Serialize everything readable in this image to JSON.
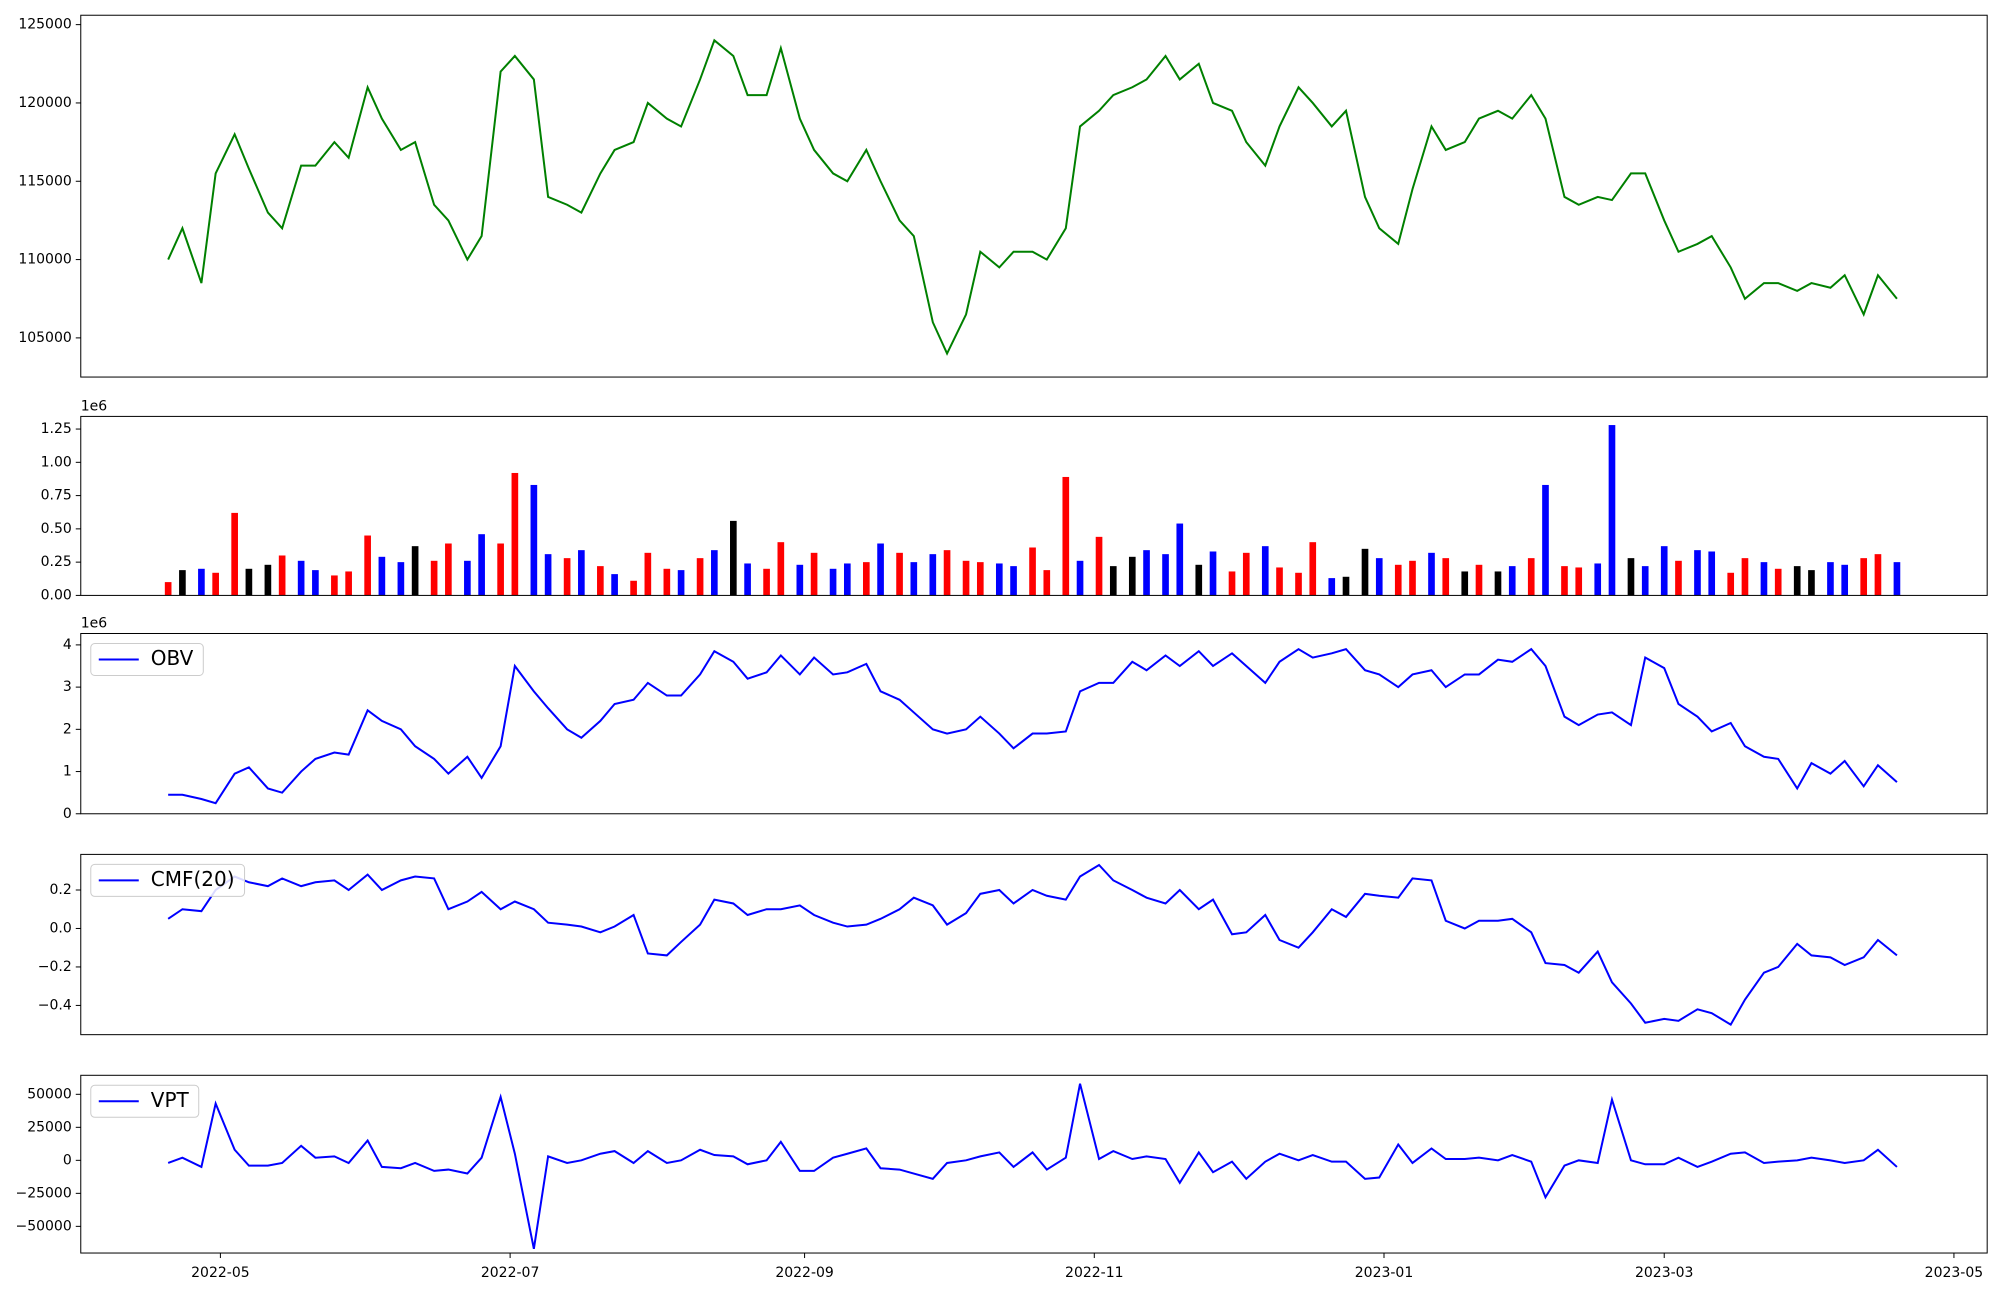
{
  "chart_data": [
    {
      "type": "line",
      "x": [
        19102,
        19105,
        19109,
        19112,
        19116,
        19119,
        19123,
        19126,
        19130,
        19133,
        19137,
        19140,
        19144,
        19147,
        19151,
        19154,
        19158,
        19161,
        19165,
        19168,
        19172,
        19175,
        19179,
        19182,
        19186,
        19189,
        19193,
        19196,
        19200,
        19203,
        19207,
        19210,
        19214,
        19217,
        19221,
        19224,
        19228,
        19231,
        19235,
        19238,
        19242,
        19245,
        19249,
        19252,
        19256,
        19259,
        19263,
        19266,
        19270,
        19273,
        19277,
        19280,
        19284,
        19287,
        19291,
        19294,
        19298,
        19301,
        19305,
        19308,
        19312,
        19315,
        19319,
        19322,
        19326,
        19329,
        19333,
        19336,
        19340,
        19343,
        19347,
        19350,
        19354,
        19357,
        19361,
        19364,
        19368,
        19371,
        19375,
        19378,
        19382,
        19385,
        19389,
        19392,
        19396,
        19399,
        19403,
        19406,
        19410,
        19413,
        19417,
        19420,
        19424,
        19427,
        19431,
        19434,
        19438,
        19441,
        19445,
        19448,
        19452,
        19455,
        19459,
        19462,
        19466
      ],
      "xlim": [
        19083.6,
        19485
      ],
      "values": [
        110000,
        112000,
        108500,
        115500,
        118000,
        115800,
        113000,
        112000,
        116000,
        116000,
        117500,
        116500,
        121000,
        119000,
        117000,
        117500,
        113500,
        112500,
        110000,
        111500,
        122000,
        123000,
        121500,
        114000,
        113500,
        113000,
        115500,
        117000,
        117500,
        120000,
        119000,
        118500,
        121500,
        124000,
        123000,
        120500,
        120500,
        123500,
        119000,
        117000,
        115500,
        115000,
        117000,
        115000,
        112500,
        111500,
        106000,
        104000,
        106500,
        110500,
        109500,
        110500,
        110500,
        110000,
        112000,
        118500,
        119500,
        120500,
        121000,
        121500,
        123000,
        121500,
        122500,
        120000,
        119500,
        117500,
        116000,
        118500,
        121000,
        120000,
        118500,
        119500,
        114000,
        112000,
        111000,
        114500,
        118500,
        117000,
        117500,
        119000,
        119500,
        119000,
        120500,
        119000,
        114000,
        113500,
        114000,
        113800,
        115500,
        115500,
        112500,
        110500,
        111000,
        111500,
        109500,
        107500,
        108500,
        108500,
        108000,
        108500,
        108200,
        109000,
        106500,
        109000,
        107500
      ],
      "color": "#008000",
      "ylim": [
        102500,
        125600
      ],
      "yticks": [
        105000,
        110000,
        115000,
        120000,
        125000
      ]
    },
    {
      "type": "bar",
      "values": [
        100000,
        190000,
        200000,
        170000,
        620000,
        200000,
        230000,
        300000,
        260000,
        190000,
        150000,
        180000,
        450000,
        290000,
        250000,
        370000,
        260000,
        390000,
        260000,
        460000,
        390000,
        920000,
        830000,
        310000,
        280000,
        340000,
        220000,
        160000,
        110000,
        320000,
        200000,
        190000,
        280000,
        340000,
        560000,
        240000,
        200000,
        400000,
        230000,
        320000,
        200000,
        240000,
        250000,
        390000,
        320000,
        250000,
        310000,
        340000,
        260000,
        250000,
        240000,
        220000,
        360000,
        190000,
        890000,
        260000,
        440000,
        220000,
        290000,
        340000,
        310000,
        540000,
        230000,
        330000,
        180000,
        320000,
        370000,
        210000,
        170000,
        400000,
        130000,
        140000,
        350000,
        280000,
        230000,
        260000,
        320000,
        280000,
        180000,
        230000,
        180000,
        220000,
        280000,
        830000,
        220000,
        210000,
        240000,
        1280000,
        280000,
        220000,
        370000,
        260000,
        340000,
        330000,
        170000,
        280000,
        250000,
        200000,
        220000,
        190000,
        250000,
        230000,
        280000,
        310000,
        250000
      ],
      "colors": [
        "red",
        "black",
        "blue",
        "red",
        "red",
        "black",
        "black",
        "red",
        "blue",
        "blue",
        "red",
        "red",
        "red",
        "blue",
        "blue",
        "black",
        "red",
        "red",
        "blue",
        "blue",
        "red",
        "red",
        "blue",
        "blue",
        "red",
        "blue",
        "red",
        "blue",
        "red",
        "red",
        "red",
        "blue",
        "red",
        "blue",
        "black",
        "blue",
        "red",
        "red",
        "blue",
        "red",
        "blue",
        "blue",
        "red",
        "blue",
        "red",
        "blue",
        "blue",
        "red",
        "red",
        "red",
        "blue",
        "blue",
        "red",
        "red",
        "red",
        "blue",
        "red",
        "black",
        "black",
        "blue",
        "blue",
        "blue",
        "black",
        "blue",
        "red",
        "red",
        "blue",
        "red",
        "red",
        "red",
        "blue",
        "black",
        "black",
        "blue",
        "red",
        "red",
        "blue",
        "red",
        "black",
        "red",
        "black",
        "blue",
        "red",
        "blue",
        "red",
        "red",
        "blue",
        "blue",
        "black",
        "blue",
        "blue",
        "red",
        "blue",
        "blue",
        "red",
        "red",
        "blue",
        "red",
        "black",
        "black",
        "blue",
        "blue",
        "red",
        "red",
        "blue"
      ],
      "ylim": [
        0,
        1345000
      ],
      "yticks": [
        {
          "value": 0,
          "label": "0.00"
        },
        {
          "value": 250000,
          "label": "0.25"
        },
        {
          "value": 500000,
          "label": "0.50"
        },
        {
          "value": 750000,
          "label": "0.75"
        },
        {
          "value": 1000000,
          "label": "1.00"
        },
        {
          "value": 1250000,
          "label": "1.25"
        }
      ],
      "offset_label": "1e6"
    },
    {
      "type": "line",
      "series": [
        {
          "name": "OBV",
          "color": "#0000ff",
          "values": [
            450000,
            450000,
            350000,
            250000,
            950000,
            1100000,
            600000,
            500000,
            1000000,
            1300000,
            1450000,
            1400000,
            2450000,
            2200000,
            2000000,
            1600000,
            1300000,
            950000,
            1350000,
            850000,
            1600000,
            3500000,
            2900000,
            2500000,
            2000000,
            1800000,
            2200000,
            2600000,
            2700000,
            3100000,
            2800000,
            2800000,
            3300000,
            3850000,
            3600000,
            3200000,
            3350000,
            3750000,
            3300000,
            3700000,
            3300000,
            3350000,
            3550000,
            2900000,
            2700000,
            2400000,
            2000000,
            1900000,
            2000000,
            2300000,
            1900000,
            1550000,
            1900000,
            1900000,
            1950000,
            2900000,
            3100000,
            3100000,
            3600000,
            3400000,
            3750000,
            3500000,
            3850000,
            3500000,
            3800000,
            3500000,
            3100000,
            3600000,
            3900000,
            3700000,
            3800000,
            3900000,
            3400000,
            3300000,
            3000000,
            3300000,
            3400000,
            3000000,
            3300000,
            3300000,
            3650000,
            3600000,
            3900000,
            3500000,
            2300000,
            2100000,
            2350000,
            2400000,
            2100000,
            3700000,
            3450000,
            2600000,
            2300000,
            1950000,
            2150000,
            1600000,
            1350000,
            1300000,
            600000,
            1200000,
            950000,
            1250000,
            650000,
            1150000,
            750000
          ]
        }
      ],
      "ylim": [
        0,
        4270000
      ],
      "yticks": [
        0,
        {
          "value": 1000000,
          "label": "1"
        },
        {
          "value": 2000000,
          "label": "2"
        },
        {
          "value": 3000000,
          "label": "3"
        },
        {
          "value": 4000000,
          "label": "4"
        }
      ],
      "offset_label": "1e6",
      "legend": "upper left"
    },
    {
      "type": "line",
      "series": [
        {
          "name": "CMF(20)",
          "color": "#0000ff",
          "values": [
            0.05,
            0.1,
            0.09,
            0.2,
            0.27,
            0.24,
            0.22,
            0.26,
            0.22,
            0.24,
            0.25,
            0.2,
            0.28,
            0.2,
            0.25,
            0.27,
            0.26,
            0.1,
            0.14,
            0.19,
            0.1,
            0.14,
            0.1,
            0.03,
            0.02,
            0.01,
            -0.02,
            0.01,
            0.07,
            -0.13,
            -0.14,
            -0.07,
            0.02,
            0.15,
            0.13,
            0.07,
            0.1,
            0.1,
            0.12,
            0.07,
            0.03,
            0.01,
            0.02,
            0.05,
            0.1,
            0.16,
            0.12,
            0.02,
            0.08,
            0.18,
            0.2,
            0.13,
            0.2,
            0.17,
            0.15,
            0.27,
            0.33,
            0.25,
            0.2,
            0.16,
            0.13,
            0.2,
            0.1,
            0.15,
            -0.03,
            -0.02,
            0.07,
            -0.06,
            -0.1,
            -0.02,
            0.1,
            0.06,
            0.18,
            0.17,
            0.16,
            0.26,
            0.25,
            0.04,
            0,
            0.04,
            0.04,
            0.05,
            -0.02,
            -0.18,
            -0.19,
            -0.23,
            -0.12,
            -0.28,
            -0.39,
            -0.49,
            -0.47,
            -0.48,
            -0.42,
            -0.44,
            -0.5,
            -0.37,
            -0.23,
            -0.2,
            -0.08,
            -0.14,
            -0.15,
            -0.19,
            -0.15,
            -0.06,
            -0.14
          ]
        }
      ],
      "ylim": [
        -0.552,
        0.385
      ],
      "yticks": [
        {
          "value": -0.4,
          "label": "−0.4"
        },
        {
          "value": -0.2,
          "label": "−0.2"
        },
        {
          "value": 0,
          "label": "0.0"
        },
        0.2
      ],
      "legend": "upper left"
    },
    {
      "type": "line",
      "series": [
        {
          "name": "VPT",
          "color": "#0000ff",
          "values": [
            -2000,
            2000,
            -5000,
            43000,
            8000,
            -4000,
            -4000,
            -2000,
            11000,
            2000,
            3000,
            -2000,
            15000,
            -5000,
            -6000,
            -2000,
            -8000,
            -7000,
            -10000,
            2000,
            48000,
            5000,
            -67000,
            3000,
            -2000,
            0,
            5000,
            7000,
            -2000,
            7000,
            -2000,
            0,
            8000,
            4000,
            3000,
            -3000,
            0,
            14000,
            -8000,
            -8000,
            2000,
            5000,
            9000,
            -6000,
            -7000,
            -10000,
            -14000,
            -2000,
            0,
            3000,
            6000,
            -5000,
            6000,
            -7000,
            2000,
            58000,
            1000,
            7000,
            1000,
            3000,
            1000,
            -17000,
            6000,
            -9000,
            -1000,
            -14000,
            -1000,
            5000,
            0,
            4000,
            -1000,
            -1000,
            -14000,
            -13000,
            12000,
            -2000,
            9000,
            1000,
            1000,
            2000,
            0,
            4000,
            -1000,
            -28000,
            -4000,
            0,
            -2000,
            46000,
            0,
            -3000,
            -3000,
            2000,
            -5000,
            -1000,
            5000,
            6000,
            -2000,
            -1000,
            0,
            2000,
            0,
            -2000,
            0,
            8000,
            -5000
          ]
        }
      ],
      "ylim": [
        -70200,
        64400
      ],
      "yticks": [
        {
          "value": -50000,
          "label": "−50000"
        },
        {
          "value": -25000,
          "label": "−25000"
        },
        0,
        25000,
        50000
      ],
      "legend": "upper left",
      "xticks": [
        {
          "value": 19113,
          "label": "2022-05"
        },
        {
          "value": 19174,
          "label": "2022-07"
        },
        {
          "value": 19236,
          "label": "2022-09"
        },
        {
          "value": 19297,
          "label": "2022-11"
        },
        {
          "value": 19358,
          "label": "2023-01"
        },
        {
          "value": 19417,
          "label": "2023-03"
        },
        {
          "value": 19478,
          "label": "2023-05"
        }
      ]
    }
  ]
}
